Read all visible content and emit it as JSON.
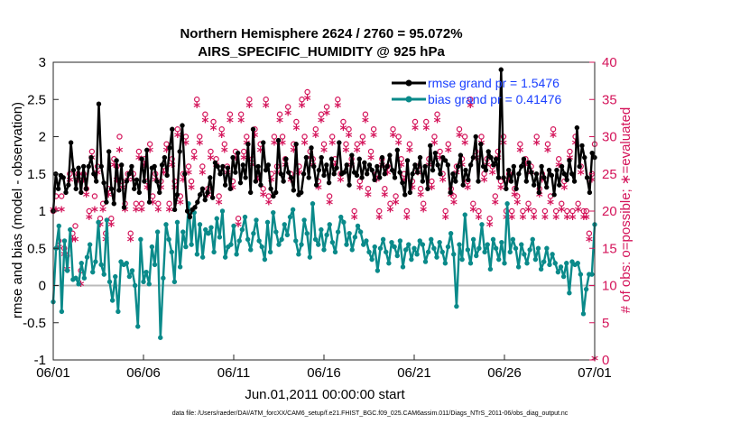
{
  "chart_data": {
    "type": "line",
    "title": "Northern Hemisphere 2624 / 2760 = 95.072%",
    "subtitle": "AIRS_SPECIFIC_HUMIDITY @ 925 hPa",
    "xlabel": "Jun.01,2011 00:00:00 start",
    "ylabel_left": "rmse and bias (model - observation)",
    "ylabel_right": "# of obs: o=possible; ∗=evaluated",
    "ylim_left": [
      -1,
      3
    ],
    "ylim_right": [
      0,
      40
    ],
    "xlim": [
      0,
      30
    ],
    "x_tick_labels": [
      "06/01",
      "06/06",
      "06/11",
      "06/16",
      "06/21",
      "06/26",
      "07/01"
    ],
    "x_tick_values": [
      0,
      5,
      10,
      15,
      20,
      25,
      30
    ],
    "y_left_ticks": [
      "-1",
      "-0.5",
      "0",
      "0.5",
      "1",
      "1.5",
      "2",
      "2.5",
      "3"
    ],
    "y_left_tick_values": [
      -1,
      -0.5,
      0,
      0.5,
      1,
      1.5,
      2,
      2.5,
      3
    ],
    "y_right_ticks": [
      "0",
      "5",
      "10",
      "15",
      "20",
      "25",
      "30",
      "35",
      "40"
    ],
    "y_right_tick_values": [
      0,
      5,
      10,
      15,
      20,
      25,
      30,
      35,
      40
    ],
    "footnote": "data file: /Users/raeder/DAI/ATM_forcXX/CAM6_setup/f.e21.FHIST_BGC.f09_025.CAM6assim.011/Diags_NTrS_2011-06/obs_diag_output.nc",
    "colors": {
      "rmse": "#000000",
      "bias": "#0a8a8a",
      "obs": "#d4145a",
      "zero_line": "#bbbbbb"
    },
    "series": [
      {
        "name": "rmse grand pr = 1.5476",
        "axis": "left",
        "values": [
          1.0,
          1.5,
          1.3,
          1.48,
          1.45,
          1.25,
          1.35,
          1.92,
          1.55,
          1.3,
          1.58,
          1.25,
          1.6,
          1.3,
          1.6,
          1.72,
          1.5,
          1.4,
          2.44,
          1.6,
          1.38,
          1.12,
          1.8,
          1.3,
          1.1,
          1.68,
          1.28,
          1.62,
          1.05,
          1.4,
          1.5,
          1.6,
          1.3,
          1.42,
          1.25,
          1.7,
          1.4,
          1.82,
          1.12,
          1.58,
          1.6,
          1.4,
          1.25,
          1.62,
          1.72,
          1.48,
          1.85,
          2.1,
          1.02,
          1.22,
          1.8,
          2.15,
          1.5,
          1.0,
          0.92,
          1.02,
          1.05,
          1.12,
          1.22,
          1.3,
          1.15,
          1.25,
          1.45,
          1.18,
          1.65,
          1.6,
          1.5,
          1.6,
          1.35,
          1.58,
          1.3,
          1.72,
          1.52,
          1.78,
          1.38,
          1.62,
          1.45,
          1.9,
          1.25,
          2.1,
          1.4,
          1.6,
          1.35,
          1.92,
          1.55,
          1.62,
          1.3,
          1.2,
          1.25,
          1.95,
          1.5,
          1.4,
          1.7,
          1.52,
          1.45,
          1.28,
          1.9,
          1.22,
          1.25,
          1.5,
          1.72,
          1.45,
          1.85,
          1.6,
          1.35,
          1.55,
          1.72,
          1.48,
          1.62,
          1.38,
          1.7,
          1.5,
          1.58,
          1.92,
          1.5,
          1.52,
          1.62,
          1.35,
          1.75,
          1.52,
          1.48,
          1.7,
          1.45,
          1.65,
          1.5,
          1.62,
          1.55,
          1.42,
          1.6,
          1.45,
          1.72,
          1.5,
          1.6,
          1.75,
          1.55,
          1.45,
          1.82,
          1.52,
          1.38,
          1.22,
          1.68,
          1.25,
          1.5,
          1.62,
          1.52,
          1.72,
          1.4,
          1.6,
          1.3,
          1.88,
          1.55,
          1.78,
          1.62,
          1.5,
          1.72,
          1.68,
          1.62,
          1.25,
          1.5,
          1.4,
          1.6,
          1.75,
          1.35,
          1.55,
          1.42,
          1.62,
          1.72,
          2.0,
          1.4,
          1.9,
          1.6,
          1.55,
          1.8,
          1.72,
          1.62,
          1.7,
          1.45,
          2.9,
          1.45,
          1.3,
          1.55,
          1.4,
          1.6,
          1.3,
          1.5,
          1.6,
          1.7,
          1.4,
          1.65,
          1.52,
          1.35,
          1.5,
          1.25,
          1.6,
          1.45,
          1.32,
          1.55,
          1.48,
          1.22,
          1.55,
          1.35,
          1.6,
          1.5,
          1.42,
          1.68,
          1.5,
          1.4,
          2.12,
          1.6,
          1.88,
          1.72,
          1.45,
          1.25,
          1.78,
          1.72
        ]
      },
      {
        "name": "bias grand pr = 0.41476",
        "axis": "left",
        "values": [
          -0.22,
          0.5,
          0.8,
          -0.35,
          0.6,
          0.2,
          0.75,
          0.08,
          0.1,
          0.02,
          0.3,
          0.1,
          0.38,
          0.55,
          0.18,
          0.32,
          0.85,
          0.28,
          0.15,
          0.88,
          0.05,
          -0.2,
          0.12,
          -0.35,
          0.32,
          0.28,
          0.3,
          0.12,
          0.2,
          0.0,
          -0.55,
          0.62,
          0.05,
          0.18,
          0.02,
          0.52,
          0.28,
          0.72,
          -0.7,
          0.1,
          0.82,
          0.62,
          0.45,
          0.05,
          0.85,
          0.25,
          0.72,
          0.52,
          1.1,
          0.55,
          0.98,
          0.42,
          0.82,
          0.38,
          0.75,
          0.7,
          0.78,
          0.45,
          0.9,
          0.65,
          1.0,
          0.38,
          0.52,
          0.55,
          0.8,
          0.42,
          0.6,
          0.75,
          0.92,
          0.62,
          0.48,
          0.7,
          0.88,
          0.6,
          0.52,
          0.35,
          0.85,
          0.45,
          0.98,
          0.72,
          0.55,
          0.62,
          0.82,
          0.68,
          0.92,
          1.02,
          0.6,
          0.42,
          0.55,
          0.88,
          0.7,
          0.38,
          1.1,
          0.62,
          0.55,
          0.75,
          0.48,
          0.68,
          0.82,
          0.58,
          0.45,
          0.72,
          0.92,
          0.85,
          0.55,
          0.7,
          0.48,
          0.65,
          0.8,
          0.72,
          0.55,
          0.6,
          0.45,
          0.35,
          0.52,
          0.2,
          0.5,
          0.62,
          0.45,
          0.3,
          0.58,
          0.52,
          0.4,
          0.6,
          0.25,
          0.48,
          0.55,
          0.35,
          0.5,
          0.42,
          0.6,
          0.55,
          0.32,
          0.45,
          0.62,
          0.5,
          0.38,
          0.58,
          0.45,
          0.3,
          0.52,
          0.7,
          0.42,
          -0.28,
          0.55,
          0.35,
          0.95,
          0.48,
          0.3,
          0.62,
          0.4,
          0.5,
          0.82,
          0.45,
          0.55,
          0.22,
          0.62,
          0.5,
          0.35,
          0.58,
          0.3,
          1.1,
          0.45,
          0.62,
          0.5,
          0.25,
          0.55,
          0.42,
          0.3,
          0.48,
          0.62,
          0.35,
          0.5,
          0.22,
          0.32,
          0.5,
          0.28,
          0.42,
          0.3,
          0.18,
          0.25,
          0.12,
          0.3,
          -0.1,
          0.32,
          0.28,
          0.3,
          0.15,
          -0.38,
          -0.05,
          0.15,
          0.15,
          0.82
        ]
      }
    ],
    "obs_possible_marker": "o",
    "obs_evaluated_marker": "*",
    "obs_possible": [
      20,
      22,
      16,
      22,
      15,
      14,
      25,
      17,
      18,
      25,
      12,
      25,
      23,
      20,
      28,
      22,
      26,
      19,
      21,
      17,
      23,
      19,
      27,
      26,
      30,
      24,
      21,
      25,
      17,
      25,
      21,
      28,
      21,
      27,
      24,
      29,
      22,
      25,
      21,
      24,
      26,
      29,
      21,
      27,
      24,
      31,
      22,
      25,
      30,
      26,
      24,
      28,
      35,
      30,
      26,
      33,
      23,
      28,
      32,
      27,
      22,
      31,
      29,
      26,
      33,
      24,
      28,
      19,
      33,
      28,
      30,
      35,
      27,
      31,
      25,
      29,
      23,
      35,
      22,
      25,
      30,
      26,
      33,
      30,
      27,
      34,
      25,
      29,
      32,
      26,
      35,
      30,
      36,
      28,
      27,
      31,
      24,
      33,
      29,
      34,
      22,
      30,
      27,
      35,
      25,
      32,
      29,
      31,
      27,
      20,
      29,
      24,
      30,
      33,
      23,
      28,
      31,
      25,
      20,
      27,
      23,
      26,
      21,
      31,
      22,
      30,
      27,
      25,
      20,
      29,
      24,
      32,
      26,
      23,
      21,
      32,
      27,
      24,
      30,
      33,
      28,
      25,
      20,
      29,
      23,
      22,
      26,
      31,
      27,
      30,
      24,
      35,
      21,
      28,
      20,
      30,
      25,
      27,
      19,
      26,
      22,
      28,
      24,
      30,
      20,
      25,
      20,
      23,
      22,
      29,
      20,
      27,
      21,
      26,
      20,
      30,
      23,
      25,
      20,
      29,
      22,
      31,
      20,
      27,
      21,
      24,
      20,
      28,
      20,
      30,
      21,
      26,
      20,
      20,
      17,
      25,
      29
    ],
    "obs_evaluated": [
      20,
      20,
      15,
      20,
      14,
      12,
      24,
      16,
      16,
      24,
      10,
      24,
      22,
      19,
      27,
      20,
      25,
      18,
      20,
      16,
      22,
      18,
      26,
      24,
      28,
      23,
      20,
      24,
      16,
      24,
      20,
      27,
      20,
      26,
      23,
      28,
      21,
      24,
      20,
      23,
      25,
      28,
      20,
      26,
      23,
      30,
      21,
      24,
      29,
      25,
      23,
      27,
      34,
      29,
      25,
      32,
      22,
      27,
      31,
      26,
      21,
      30,
      28,
      25,
      32,
      23,
      27,
      18,
      32,
      27,
      29,
      34,
      26,
      30,
      24,
      28,
      22,
      34,
      21,
      24,
      29,
      25,
      32,
      29,
      26,
      33,
      24,
      28,
      31,
      25,
      34,
      29,
      35,
      27,
      26,
      30,
      23,
      32,
      28,
      33,
      21,
      29,
      26,
      34,
      24,
      31,
      28,
      30,
      26,
      19,
      28,
      23,
      29,
      32,
      22,
      27,
      30,
      24,
      19,
      26,
      22,
      25,
      20,
      30,
      21,
      29,
      26,
      24,
      19,
      28,
      23,
      31,
      25,
      22,
      20,
      31,
      26,
      23,
      29,
      32,
      27,
      24,
      19,
      28,
      22,
      21,
      25,
      30,
      26,
      29,
      23,
      34,
      20,
      27,
      19,
      29,
      24,
      26,
      18,
      25,
      21,
      27,
      23,
      29,
      19,
      24,
      19,
      22,
      21,
      28,
      19,
      26,
      20,
      25,
      19,
      29,
      22,
      24,
      19,
      28,
      21,
      30,
      19,
      26,
      20,
      23,
      19,
      27,
      19,
      29,
      20,
      25,
      19,
      19,
      16,
      24,
      0
    ]
  }
}
